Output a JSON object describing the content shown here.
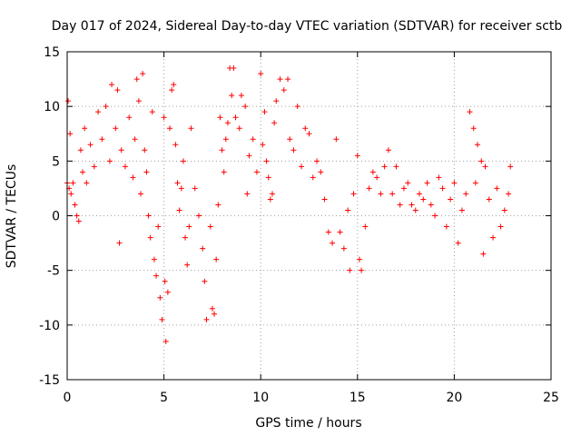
{
  "chart_data": {
    "type": "scatter",
    "title": "Day 017 of 2024, Sidereal Day-to-day VTEC variation (SDTVAR) for receiver sctb",
    "xlabel": "GPS time / hours",
    "ylabel": "SDTVAR / TECUs",
    "xlim": [
      0,
      25
    ],
    "ylim": [
      -15,
      15
    ],
    "x_ticks": [
      0,
      5,
      10,
      15,
      20,
      25
    ],
    "y_ticks": [
      -15,
      -10,
      -5,
      0,
      5,
      10,
      15
    ],
    "x_tick_labels": [
      "0",
      "5",
      "10",
      "15",
      "20",
      "25"
    ],
    "y_tick_labels": [
      "-15",
      "-10",
      "-5",
      "0",
      "5",
      "10",
      "15"
    ],
    "grid": true,
    "marker": "plus",
    "color": "#ff0000",
    "series": [
      {
        "name": "sctb",
        "points": [
          [
            0.0,
            3.0
          ],
          [
            0.05,
            10.5
          ],
          [
            0.1,
            2.5
          ],
          [
            0.15,
            7.5
          ],
          [
            0.2,
            2.0
          ],
          [
            0.3,
            3.0
          ],
          [
            0.4,
            1.0
          ],
          [
            0.5,
            0.0
          ],
          [
            0.6,
            -0.5
          ],
          [
            0.7,
            6.0
          ],
          [
            0.8,
            4.0
          ],
          [
            0.9,
            8.0
          ],
          [
            1.0,
            3.0
          ],
          [
            1.2,
            6.5
          ],
          [
            1.4,
            4.5
          ],
          [
            1.6,
            9.5
          ],
          [
            1.8,
            7.0
          ],
          [
            2.0,
            10.0
          ],
          [
            2.2,
            5.0
          ],
          [
            2.3,
            12.0
          ],
          [
            2.5,
            8.0
          ],
          [
            2.6,
            11.5
          ],
          [
            2.7,
            -2.5
          ],
          [
            2.8,
            6.0
          ],
          [
            3.0,
            4.5
          ],
          [
            3.2,
            9.0
          ],
          [
            3.4,
            3.5
          ],
          [
            3.5,
            7.0
          ],
          [
            3.6,
            12.5
          ],
          [
            3.7,
            10.5
          ],
          [
            3.8,
            2.0
          ],
          [
            3.9,
            13.0
          ],
          [
            4.0,
            6.0
          ],
          [
            4.1,
            4.0
          ],
          [
            4.2,
            0.0
          ],
          [
            4.3,
            -2.0
          ],
          [
            4.4,
            9.5
          ],
          [
            4.5,
            -4.0
          ],
          [
            4.6,
            -5.5
          ],
          [
            4.7,
            -1.0
          ],
          [
            4.8,
            -7.5
          ],
          [
            4.9,
            -9.5
          ],
          [
            5.0,
            9.0
          ],
          [
            5.05,
            -6.0
          ],
          [
            5.1,
            -11.5
          ],
          [
            5.2,
            -7.0
          ],
          [
            5.3,
            8.0
          ],
          [
            5.4,
            11.5
          ],
          [
            5.5,
            12.0
          ],
          [
            5.6,
            6.5
          ],
          [
            5.7,
            3.0
          ],
          [
            5.8,
            0.5
          ],
          [
            5.9,
            2.5
          ],
          [
            6.0,
            5.0
          ],
          [
            6.1,
            -2.0
          ],
          [
            6.2,
            -4.5
          ],
          [
            6.3,
            -1.0
          ],
          [
            6.4,
            8.0
          ],
          [
            6.6,
            2.5
          ],
          [
            6.8,
            0.0
          ],
          [
            7.0,
            -3.0
          ],
          [
            7.1,
            -6.0
          ],
          [
            7.2,
            -9.5
          ],
          [
            7.4,
            -1.0
          ],
          [
            7.5,
            -8.5
          ],
          [
            7.6,
            -9.0
          ],
          [
            7.7,
            -4.0
          ],
          [
            7.8,
            1.0
          ],
          [
            7.9,
            9.0
          ],
          [
            8.0,
            6.0
          ],
          [
            8.1,
            4.0
          ],
          [
            8.2,
            7.0
          ],
          [
            8.3,
            8.5
          ],
          [
            8.4,
            13.5
          ],
          [
            8.5,
            11.0
          ],
          [
            8.6,
            13.5
          ],
          [
            8.7,
            9.0
          ],
          [
            8.9,
            8.0
          ],
          [
            9.0,
            11.0
          ],
          [
            9.2,
            10.0
          ],
          [
            9.3,
            2.0
          ],
          [
            9.4,
            5.5
          ],
          [
            9.6,
            7.0
          ],
          [
            9.8,
            4.0
          ],
          [
            10.0,
            13.0
          ],
          [
            10.1,
            6.5
          ],
          [
            10.2,
            9.5
          ],
          [
            10.3,
            5.0
          ],
          [
            10.4,
            3.5
          ],
          [
            10.5,
            1.5
          ],
          [
            10.6,
            2.0
          ],
          [
            10.7,
            8.5
          ],
          [
            10.8,
            10.5
          ],
          [
            11.0,
            12.5
          ],
          [
            11.2,
            11.5
          ],
          [
            11.4,
            12.5
          ],
          [
            11.5,
            7.0
          ],
          [
            11.7,
            6.0
          ],
          [
            11.9,
            10.0
          ],
          [
            12.1,
            4.5
          ],
          [
            12.3,
            8.0
          ],
          [
            12.5,
            7.5
          ],
          [
            12.7,
            3.5
          ],
          [
            12.9,
            5.0
          ],
          [
            13.1,
            4.0
          ],
          [
            13.3,
            1.5
          ],
          [
            13.5,
            -1.5
          ],
          [
            13.7,
            -2.5
          ],
          [
            13.9,
            7.0
          ],
          [
            14.1,
            -1.5
          ],
          [
            14.3,
            -3.0
          ],
          [
            14.5,
            0.5
          ],
          [
            14.6,
            -5.0
          ],
          [
            14.8,
            2.0
          ],
          [
            15.0,
            5.5
          ],
          [
            15.1,
            -4.0
          ],
          [
            15.2,
            -5.0
          ],
          [
            15.4,
            -1.0
          ],
          [
            15.6,
            2.5
          ],
          [
            15.8,
            4.0
          ],
          [
            16.0,
            3.5
          ],
          [
            16.2,
            2.0
          ],
          [
            16.4,
            4.5
          ],
          [
            16.6,
            6.0
          ],
          [
            16.8,
            2.0
          ],
          [
            17.0,
            4.5
          ],
          [
            17.2,
            1.0
          ],
          [
            17.4,
            2.5
          ],
          [
            17.6,
            3.0
          ],
          [
            17.8,
            1.0
          ],
          [
            18.0,
            0.5
          ],
          [
            18.2,
            2.0
          ],
          [
            18.4,
            1.5
          ],
          [
            18.6,
            3.0
          ],
          [
            18.8,
            1.0
          ],
          [
            19.0,
            0.0
          ],
          [
            19.2,
            3.5
          ],
          [
            19.4,
            2.5
          ],
          [
            19.6,
            -1.0
          ],
          [
            19.8,
            1.5
          ],
          [
            20.0,
            3.0
          ],
          [
            20.2,
            -2.5
          ],
          [
            20.4,
            0.5
          ],
          [
            20.6,
            2.0
          ],
          [
            20.8,
            9.5
          ],
          [
            21.0,
            8.0
          ],
          [
            21.1,
            3.0
          ],
          [
            21.2,
            6.5
          ],
          [
            21.4,
            5.0
          ],
          [
            21.5,
            -3.5
          ],
          [
            21.6,
            4.5
          ],
          [
            21.8,
            1.5
          ],
          [
            22.0,
            -2.0
          ],
          [
            22.2,
            2.5
          ],
          [
            22.4,
            -1.0
          ],
          [
            22.6,
            0.5
          ],
          [
            22.8,
            2.0
          ],
          [
            22.9,
            4.5
          ]
        ]
      }
    ]
  }
}
